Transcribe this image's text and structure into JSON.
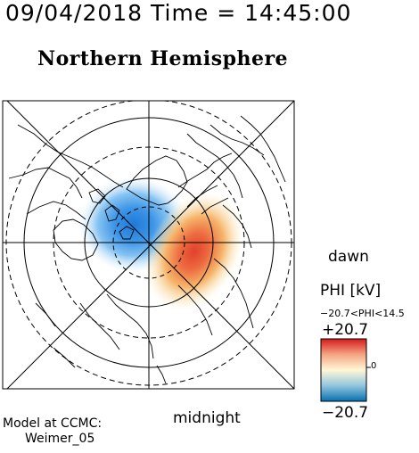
{
  "header": {
    "date": "09/04/2018",
    "time_label": "Time",
    "equals": "=",
    "time": "14:45:00"
  },
  "title": "Northern Hemisphere",
  "labels": {
    "dawn": "dawn",
    "midnight": "midnight"
  },
  "legend": {
    "title": "PHI [kV]",
    "range_text": "−20.7<PHI<14.5",
    "max": "+20.7",
    "min": "−20.7",
    "zero": "0",
    "colors": {
      "top": "#d7191c",
      "mid_high": "#f4a582",
      "mid": "#fff7d6",
      "mid_low": "#92c5de",
      "bottom": "#0571b0"
    }
  },
  "footer": {
    "model_label": "Model at CCMC:",
    "model_name": "Weimer_05"
  },
  "potential": {
    "min_kv": -20.7,
    "max_kv": 14.5,
    "scale_kv": 20.7
  }
}
